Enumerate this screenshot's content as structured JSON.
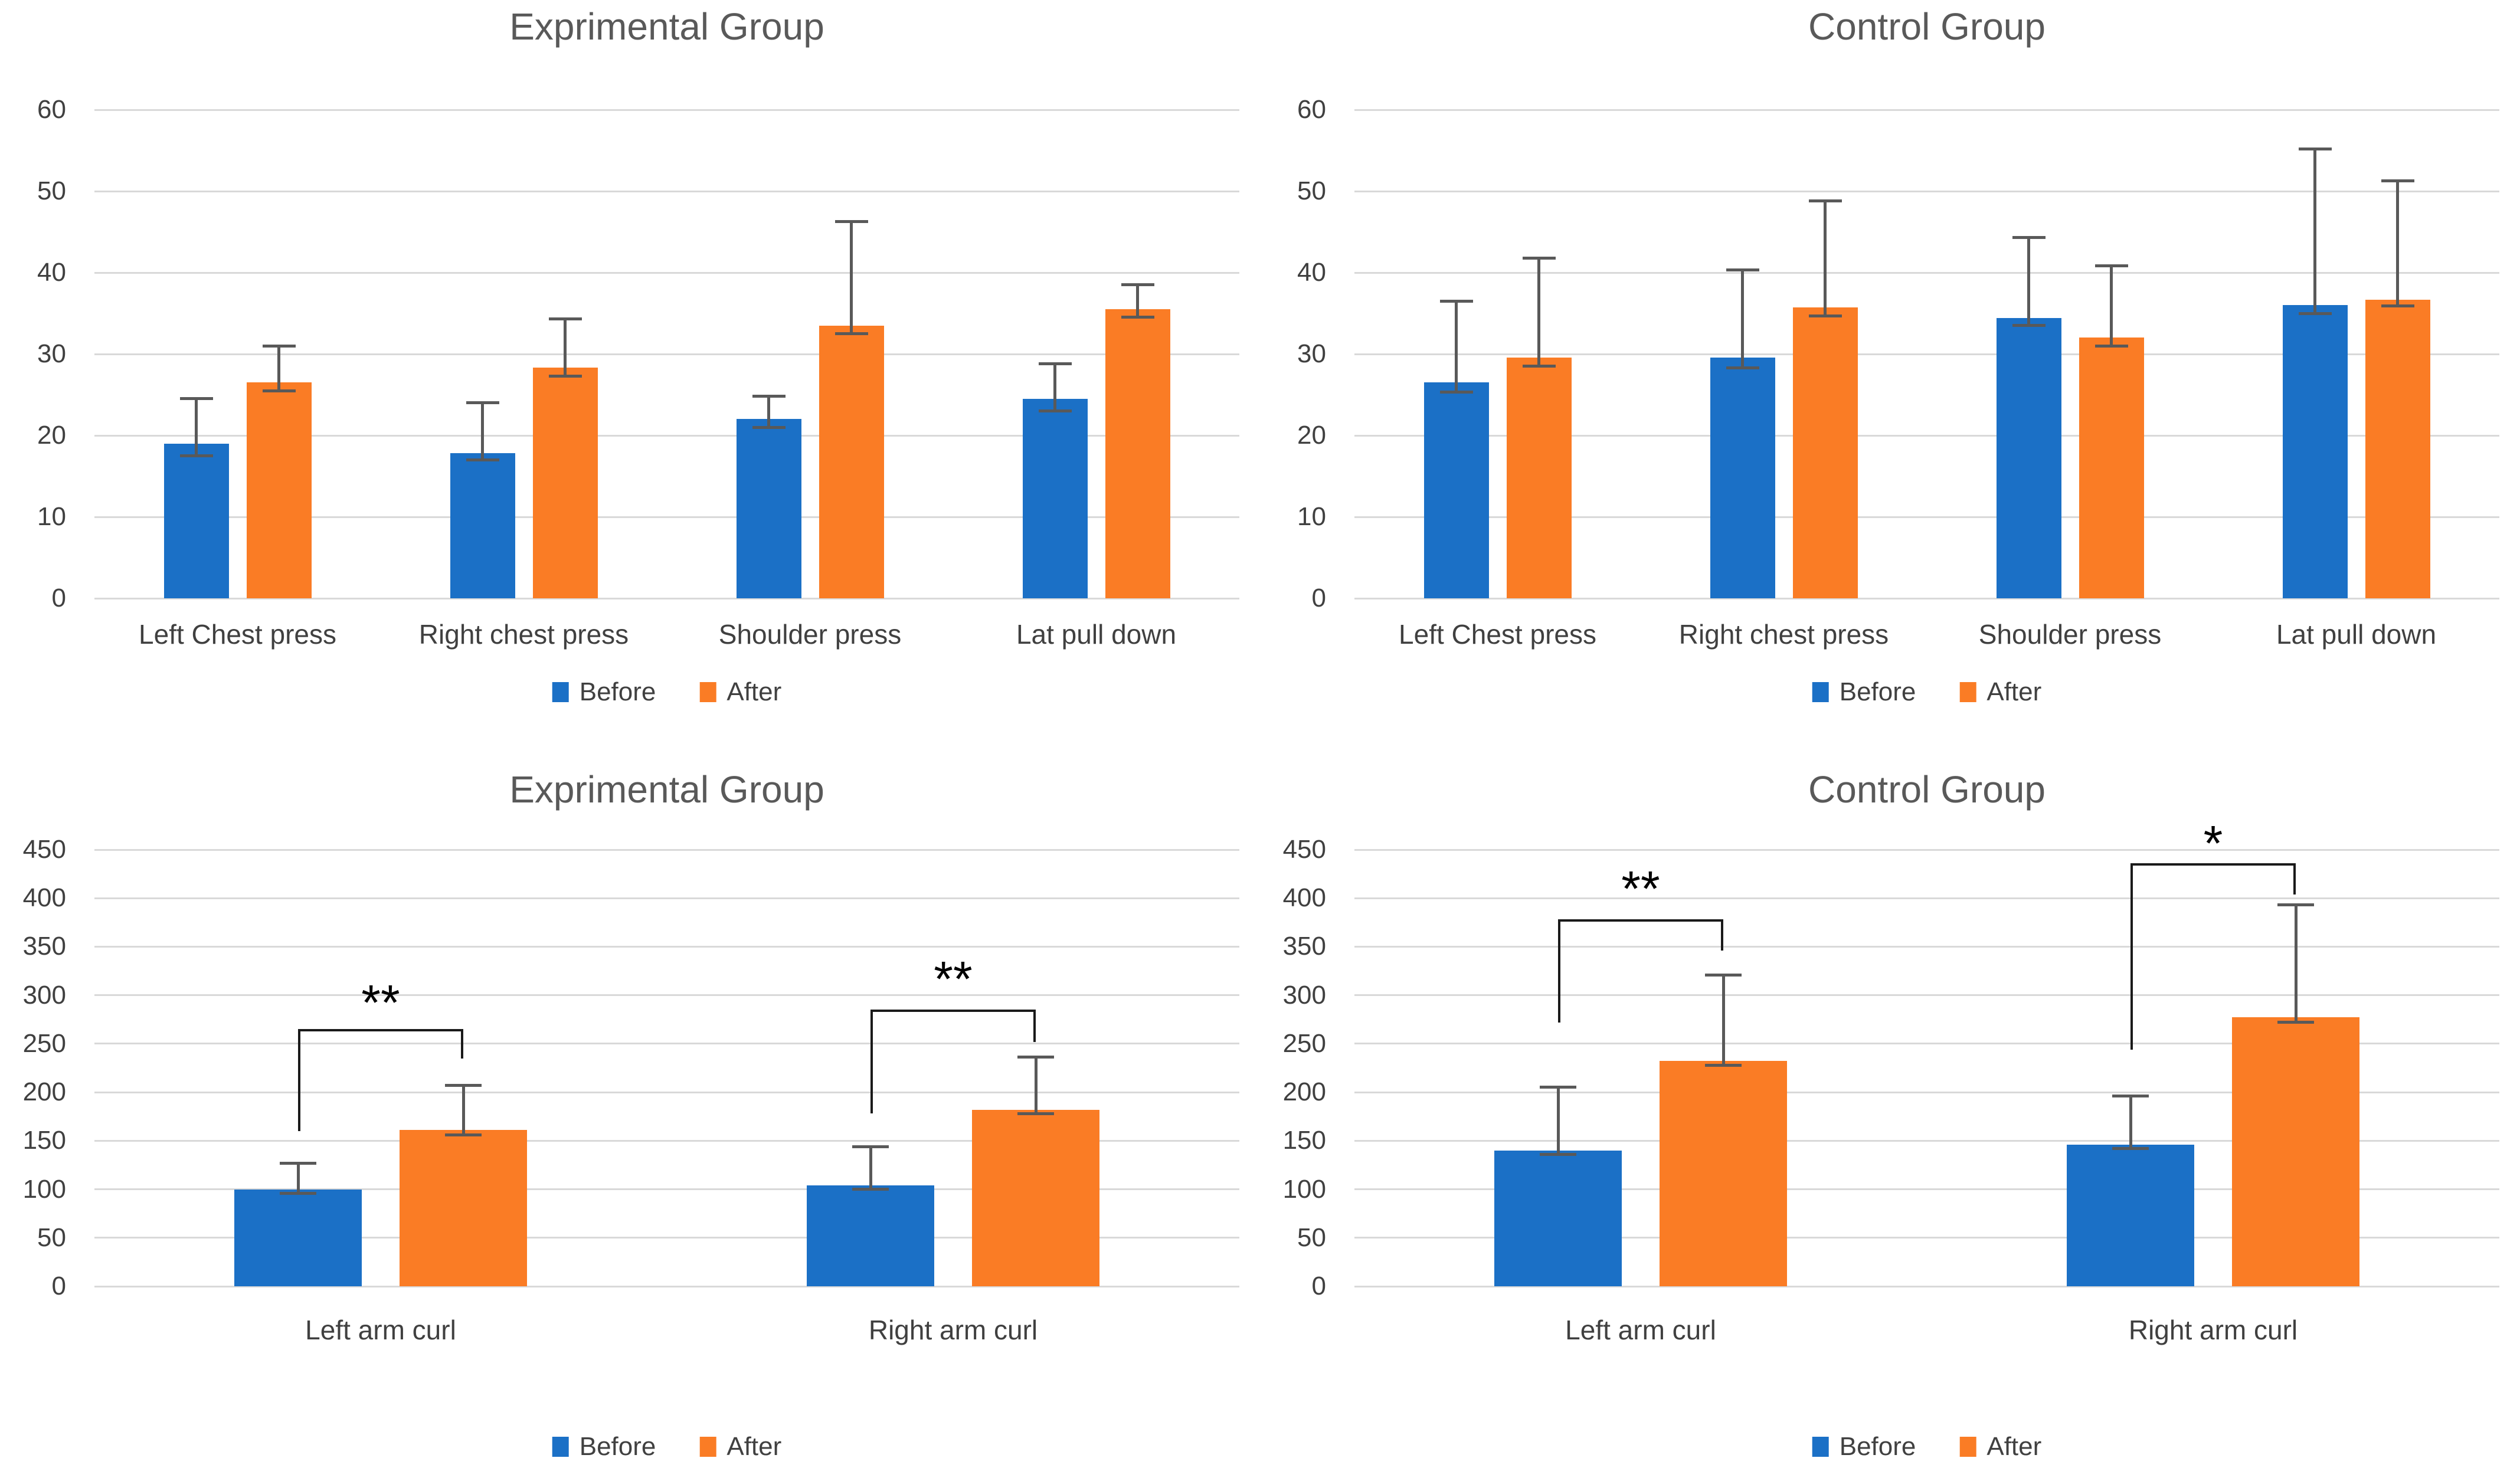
{
  "figure": {
    "rows": 2,
    "cols": 2,
    "background": "#FFFFFF"
  },
  "style": {
    "before_color": "#1B70C6",
    "after_color": "#FA7C25",
    "grid_color": "#D9D9D9",
    "error_color": "#595959",
    "bracket_color": "#1A1A1A",
    "axis_text_color": "#404040",
    "title_color": "#595959",
    "significance_color": "#000000"
  },
  "chart_data": [
    {
      "type": "bar",
      "position": "top-left",
      "title": "Exprimental Group",
      "xlabel": "",
      "ylabel": "",
      "ylim": [
        0,
        60
      ],
      "yticks": [
        0,
        10,
        20,
        30,
        40,
        50,
        60
      ],
      "grid": true,
      "legend_position": "bottom",
      "categories": [
        "Left Chest press",
        "Right chest press",
        "Shoulder press",
        "Lat pull down"
      ],
      "series": [
        {
          "name": "Before",
          "color": "#1B70C6",
          "values": [
            19,
            17.8,
            22,
            24.5
          ],
          "error_top": [
            24.5,
            24,
            24.8,
            28.8
          ],
          "error_bottom": [
            17.5,
            17,
            21,
            23
          ]
        },
        {
          "name": "After",
          "color": "#FA7C25",
          "values": [
            26.5,
            28.3,
            33.5,
            35.5
          ],
          "error_top": [
            31,
            34.3,
            46.3,
            38.5
          ],
          "error_bottom": [
            25.5,
            27.3,
            32.5,
            34.5
          ]
        }
      ],
      "significance_brackets": []
    },
    {
      "type": "bar",
      "position": "top-right",
      "title": "Control Group",
      "xlabel": "",
      "ylabel": "",
      "ylim": [
        0,
        60
      ],
      "yticks": [
        0,
        10,
        20,
        30,
        40,
        50,
        60
      ],
      "grid": true,
      "legend_position": "bottom",
      "categories": [
        "Left Chest press",
        "Right chest press",
        "Shoulder press",
        "Lat pull down"
      ],
      "series": [
        {
          "name": "Before",
          "color": "#1B70C6",
          "values": [
            26.5,
            29.6,
            34.4,
            36
          ],
          "error_top": [
            36.5,
            40.3,
            44.3,
            55.2
          ],
          "error_bottom": [
            25.3,
            28.3,
            33.5,
            35
          ]
        },
        {
          "name": "After",
          "color": "#FA7C25",
          "values": [
            29.6,
            35.7,
            32,
            36.7
          ],
          "error_top": [
            41.8,
            48.8,
            40.8,
            51.3
          ],
          "error_bottom": [
            28.5,
            34.7,
            31,
            35.9
          ]
        }
      ],
      "significance_brackets": []
    },
    {
      "type": "bar",
      "position": "bottom-left",
      "title": "Exprimental Group",
      "xlabel": "",
      "ylabel": "",
      "ylim": [
        0,
        450
      ],
      "yticks": [
        0,
        50,
        100,
        150,
        200,
        250,
        300,
        350,
        400,
        450
      ],
      "grid": true,
      "legend_position": "bottom",
      "categories": [
        "Left arm curl",
        "Right arm curl"
      ],
      "series": [
        {
          "name": "Before",
          "color": "#1B70C6",
          "values": [
            100,
            104
          ],
          "error_top": [
            127,
            144
          ],
          "error_bottom": [
            96,
            100
          ]
        },
        {
          "name": "After",
          "color": "#FA7C25",
          "values": [
            161,
            182
          ],
          "error_top": [
            207,
            236
          ],
          "error_bottom": [
            156,
            178
          ]
        }
      ],
      "significance_brackets": [
        {
          "category": 0,
          "label": "**",
          "bar_y": 265,
          "left_leg_end": 160,
          "right_leg_end": 235,
          "label_y": 303
        },
        {
          "category": 1,
          "label": "**",
          "bar_y": 285,
          "left_leg_end": 178,
          "right_leg_end": 252,
          "label_y": 327
        }
      ]
    },
    {
      "type": "bar",
      "position": "bottom-right",
      "title": "Control Group",
      "xlabel": "",
      "ylabel": "",
      "ylim": [
        0,
        450
      ],
      "yticks": [
        0,
        50,
        100,
        150,
        200,
        250,
        300,
        350,
        400,
        450
      ],
      "grid": true,
      "legend_position": "bottom",
      "categories": [
        "Left arm curl",
        "Right arm curl"
      ],
      "series": [
        {
          "name": "Before",
          "color": "#1B70C6",
          "values": [
            140,
            146
          ],
          "error_top": [
            205,
            196
          ],
          "error_bottom": [
            136,
            142
          ]
        },
        {
          "name": "After",
          "color": "#FA7C25",
          "values": [
            232,
            277
          ],
          "error_top": [
            321,
            393
          ],
          "error_bottom": [
            228,
            272
          ]
        }
      ],
      "significance_brackets": [
        {
          "category": 0,
          "label": "**",
          "bar_y": 378,
          "left_leg_end": 272,
          "right_leg_end": 346,
          "label_y": 420
        },
        {
          "category": 1,
          "label": "*",
          "bar_y": 436,
          "left_leg_end": 244,
          "right_leg_end": 404,
          "label_y": 467
        }
      ]
    }
  ]
}
